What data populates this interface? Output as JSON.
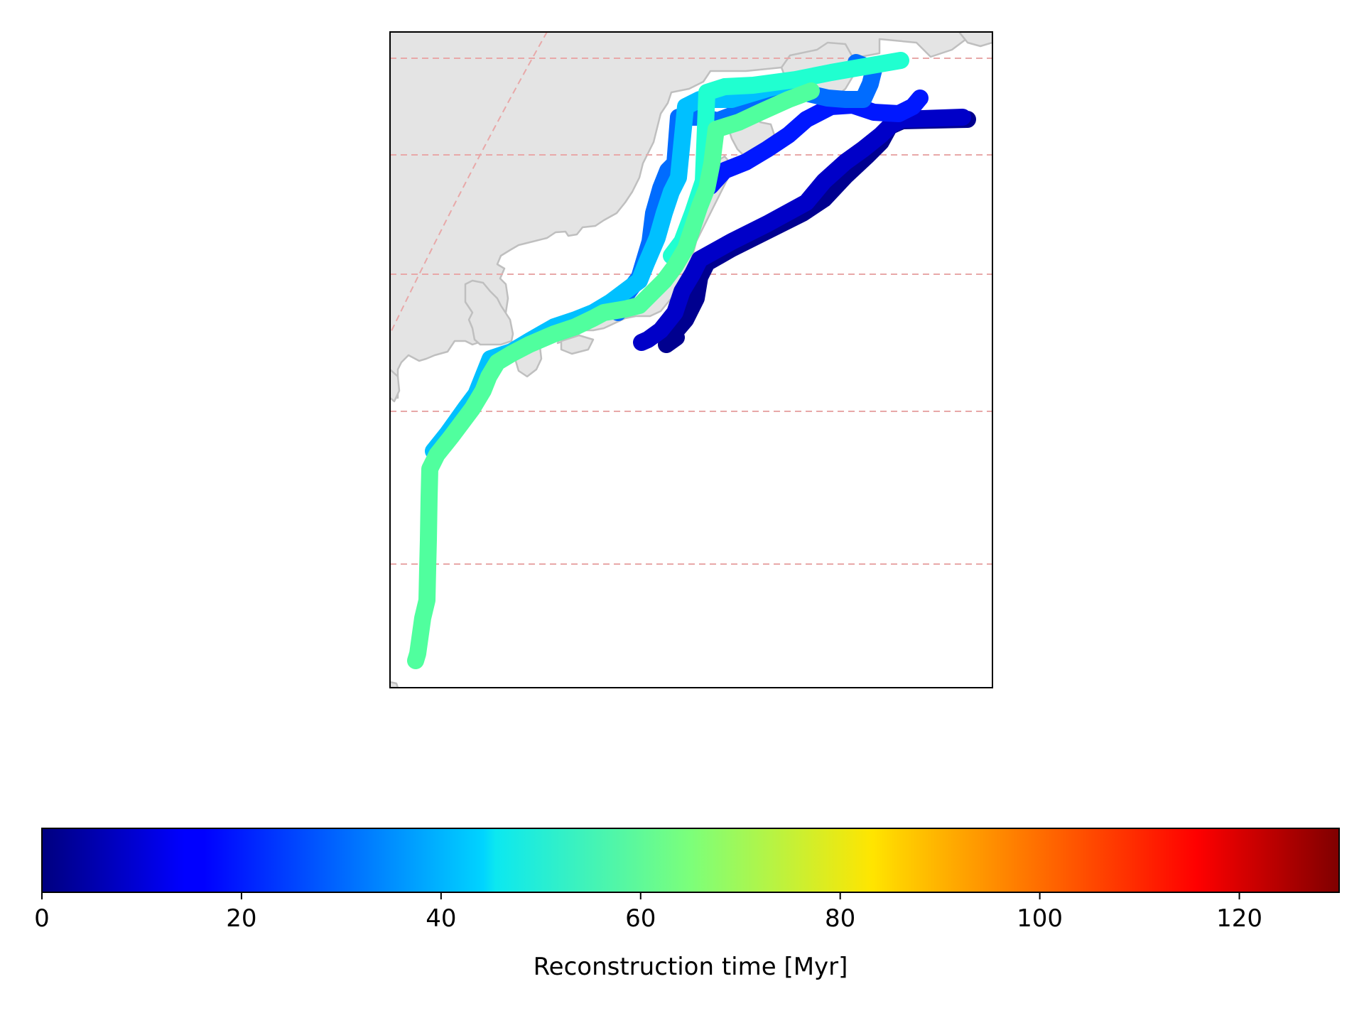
{
  "chart_data": {
    "type": "map",
    "projection": "orthographic-like regional view (NW Pacific / Japan)",
    "gridlines": "dashed, light red",
    "land_color": "#e3e3e3",
    "coastline_color": "#bdbdbd",
    "paths": [
      {
        "age_myr": 3,
        "color": "#00008f"
      },
      {
        "age_myr": 8,
        "color": "#0000c8"
      },
      {
        "age_myr": 18,
        "color": "#0018ff"
      },
      {
        "age_myr": 30,
        "color": "#006cff"
      },
      {
        "age_myr": 42,
        "color": "#00c0ff"
      },
      {
        "age_myr": 50,
        "color": "#20ffd0"
      },
      {
        "age_myr": 57,
        "color": "#50ff9e"
      }
    ],
    "colorbar": {
      "colormap": "jet",
      "vmin": 0,
      "vmax": 130,
      "ticks": [
        "0",
        "20",
        "40",
        "60",
        "80",
        "100",
        "120"
      ],
      "tick_values": [
        0,
        20,
        40,
        60,
        80,
        100,
        120
      ],
      "label": "Reconstruction time [Myr]",
      "orientation": "horizontal"
    }
  }
}
